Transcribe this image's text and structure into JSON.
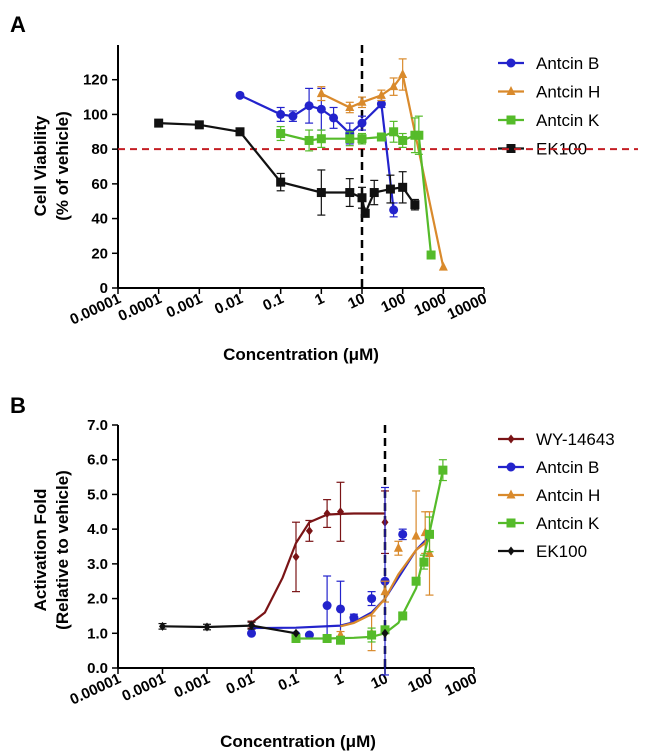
{
  "chart_data": [
    {
      "panel_label": "A",
      "type": "line",
      "xscale": "log",
      "xlabel": "Concentration (μM)",
      "ylabel_line1": "Cell Viability",
      "ylabel_line2": "(% of vehicle)",
      "xlim": [
        1e-05,
        10000
      ],
      "ylim": [
        0,
        140
      ],
      "xticks": [
        1e-05,
        0.0001,
        0.001,
        0.01,
        0.1,
        1,
        10,
        100,
        1000,
        10000
      ],
      "xtick_labels": [
        "0.00001",
        "0.0001",
        "0.001",
        "0.01",
        "0.1",
        "1",
        "10",
        "100",
        "1000",
        "10000"
      ],
      "yticks": [
        0,
        20,
        40,
        60,
        80,
        100,
        120
      ],
      "ytick_labels": [
        "0",
        "20",
        "40",
        "60",
        "80",
        "100",
        "120"
      ],
      "ref_hline": 80,
      "ref_vline": 10,
      "series": [
        {
          "name": "Antcin B",
          "color": "#2323cc",
          "marker": "circle",
          "x": [
            0.01,
            0.1,
            0.2,
            0.5,
            1,
            2,
            5,
            10,
            30,
            60
          ],
          "y": [
            111,
            100,
            99,
            105,
            103,
            98,
            89,
            95,
            106,
            45
          ],
          "err": [
            0,
            4,
            3,
            10,
            12,
            6,
            6,
            4,
            2,
            4
          ]
        },
        {
          "name": "Antcin H",
          "color": "#d98a2c",
          "marker": "triangle",
          "x": [
            1,
            5,
            10,
            30,
            60,
            100,
            1000
          ],
          "y": [
            112,
            104,
            107,
            111,
            116,
            123,
            12
          ],
          "err": [
            4,
            3,
            3,
            3,
            5,
            9,
            0
          ]
        },
        {
          "name": "Antcin K",
          "color": "#55bb2a",
          "marker": "square",
          "x": [
            0.1,
            0.5,
            1,
            5,
            10,
            30,
            60,
            100,
            200,
            250,
            500
          ],
          "y": [
            89,
            85,
            86,
            86,
            86,
            87,
            90,
            85,
            88,
            88,
            19
          ],
          "err": [
            4,
            6,
            5,
            4,
            3,
            2,
            6,
            4,
            10,
            11,
            0
          ]
        },
        {
          "name": "EK100",
          "color": "#111111",
          "marker": "square",
          "x": [
            0.0001,
            0.001,
            0.01,
            0.1,
            1,
            5,
            10,
            12,
            20,
            50,
            100,
            200
          ],
          "y": [
            95,
            94,
            90,
            61,
            55,
            55,
            52,
            43,
            55,
            57,
            58,
            48
          ],
          "err": [
            2,
            1,
            2,
            5,
            13,
            8,
            6,
            0,
            7,
            8,
            9,
            3
          ]
        }
      ]
    },
    {
      "panel_label": "B",
      "type": "line",
      "xscale": "log",
      "xlabel": "Concentration (μM)",
      "ylabel_line1": "Activation Fold",
      "ylabel_line2": "(Relative to vehicle)",
      "xlim": [
        1e-05,
        1000
      ],
      "ylim": [
        0,
        7
      ],
      "xticks": [
        1e-05,
        0.0001,
        0.001,
        0.01,
        0.1,
        1,
        10,
        100,
        1000
      ],
      "xtick_labels": [
        "0.00001",
        "0.0001",
        "0.001",
        "0.01",
        "0.1",
        "1",
        "10",
        "100",
        "1000"
      ],
      "yticks": [
        0,
        1,
        2,
        3,
        4,
        5,
        6,
        7
      ],
      "ytick_labels": [
        "0.0",
        "1.0",
        "2.0",
        "3.0",
        "4.0",
        "5.0",
        "6.0",
        "7.0"
      ],
      "ref_vline": 10,
      "series": [
        {
          "name": "WY-14643",
          "color": "#7a1416",
          "marker": "diamond",
          "x": [
            0.01,
            0.1,
            0.2,
            0.5,
            1,
            10
          ],
          "y": [
            1.25,
            3.2,
            3.95,
            4.45,
            4.5,
            4.2
          ],
          "err": [
            0.1,
            1.0,
            0.3,
            0.4,
            0.85,
            0.9
          ],
          "fit_x": [
            0.01,
            0.02,
            0.05,
            0.1,
            0.2,
            0.5,
            1,
            2,
            5,
            10
          ],
          "fit_y": [
            1.3,
            1.6,
            2.6,
            3.6,
            4.2,
            4.42,
            4.44,
            4.45,
            4.45,
            4.45
          ]
        },
        {
          "name": "Antcin B",
          "color": "#2323cc",
          "marker": "circle",
          "x": [
            0.01,
            0.1,
            0.2,
            0.5,
            1,
            2,
            5,
            10,
            25
          ],
          "y": [
            1.0,
            0.95,
            0.95,
            1.8,
            1.7,
            1.45,
            2.0,
            2.5,
            3.85
          ],
          "err": [
            0,
            0,
            0,
            0.85,
            0.8,
            0.1,
            0.2,
            2.7,
            0.15
          ],
          "fit_x": [
            0.01,
            0.1,
            1,
            2,
            5,
            10,
            20,
            50,
            100
          ],
          "fit_y": [
            1.15,
            1.16,
            1.22,
            1.32,
            1.6,
            2.0,
            2.6,
            3.4,
            3.8
          ]
        },
        {
          "name": "Antcin H",
          "color": "#d98a2c",
          "marker": "triangle",
          "x": [
            1,
            5,
            10,
            20,
            50,
            80,
            100
          ],
          "y": [
            0.95,
            1.0,
            2.2,
            3.45,
            3.8,
            3.9,
            3.3
          ],
          "err": [
            0.1,
            0.5,
            0.3,
            0.2,
            1.3,
            0.6,
            1.2
          ],
          "fit_x": [
            1,
            2,
            5,
            10,
            20,
            50,
            100
          ],
          "fit_y": [
            1.2,
            1.3,
            1.55,
            2.0,
            2.7,
            3.4,
            3.7
          ]
        },
        {
          "name": "Antcin K",
          "color": "#55bb2a",
          "marker": "square",
          "x": [
            0.1,
            0.5,
            1,
            5,
            10,
            25,
            50,
            75,
            100,
            200
          ],
          "y": [
            0.85,
            0.85,
            0.8,
            0.95,
            1.1,
            1.5,
            2.5,
            3.05,
            3.85,
            5.7
          ],
          "err": [
            0,
            0,
            0,
            0.2,
            0.1,
            0,
            0.1,
            0.2,
            0.5,
            0.3
          ],
          "fit_x": [
            0.1,
            0.5,
            1,
            2,
            5,
            10,
            20,
            50,
            100,
            200
          ],
          "fit_y": [
            0.85,
            0.85,
            0.86,
            0.87,
            0.9,
            1.0,
            1.3,
            2.3,
            3.9,
            5.7
          ]
        },
        {
          "name": "EK100",
          "color": "#111111",
          "marker": "diamond",
          "x": [
            0.0001,
            0.001,
            0.01,
            0.1,
            10
          ],
          "y": [
            1.2,
            1.18,
            1.22,
            1.0,
            1.0
          ],
          "err": [
            0.08,
            0.08,
            0.1,
            0,
            0
          ],
          "fit_x": [
            0.0001,
            0.001,
            0.01,
            0.1
          ],
          "fit_y": [
            1.2,
            1.18,
            1.22,
            1.0
          ]
        }
      ]
    }
  ]
}
